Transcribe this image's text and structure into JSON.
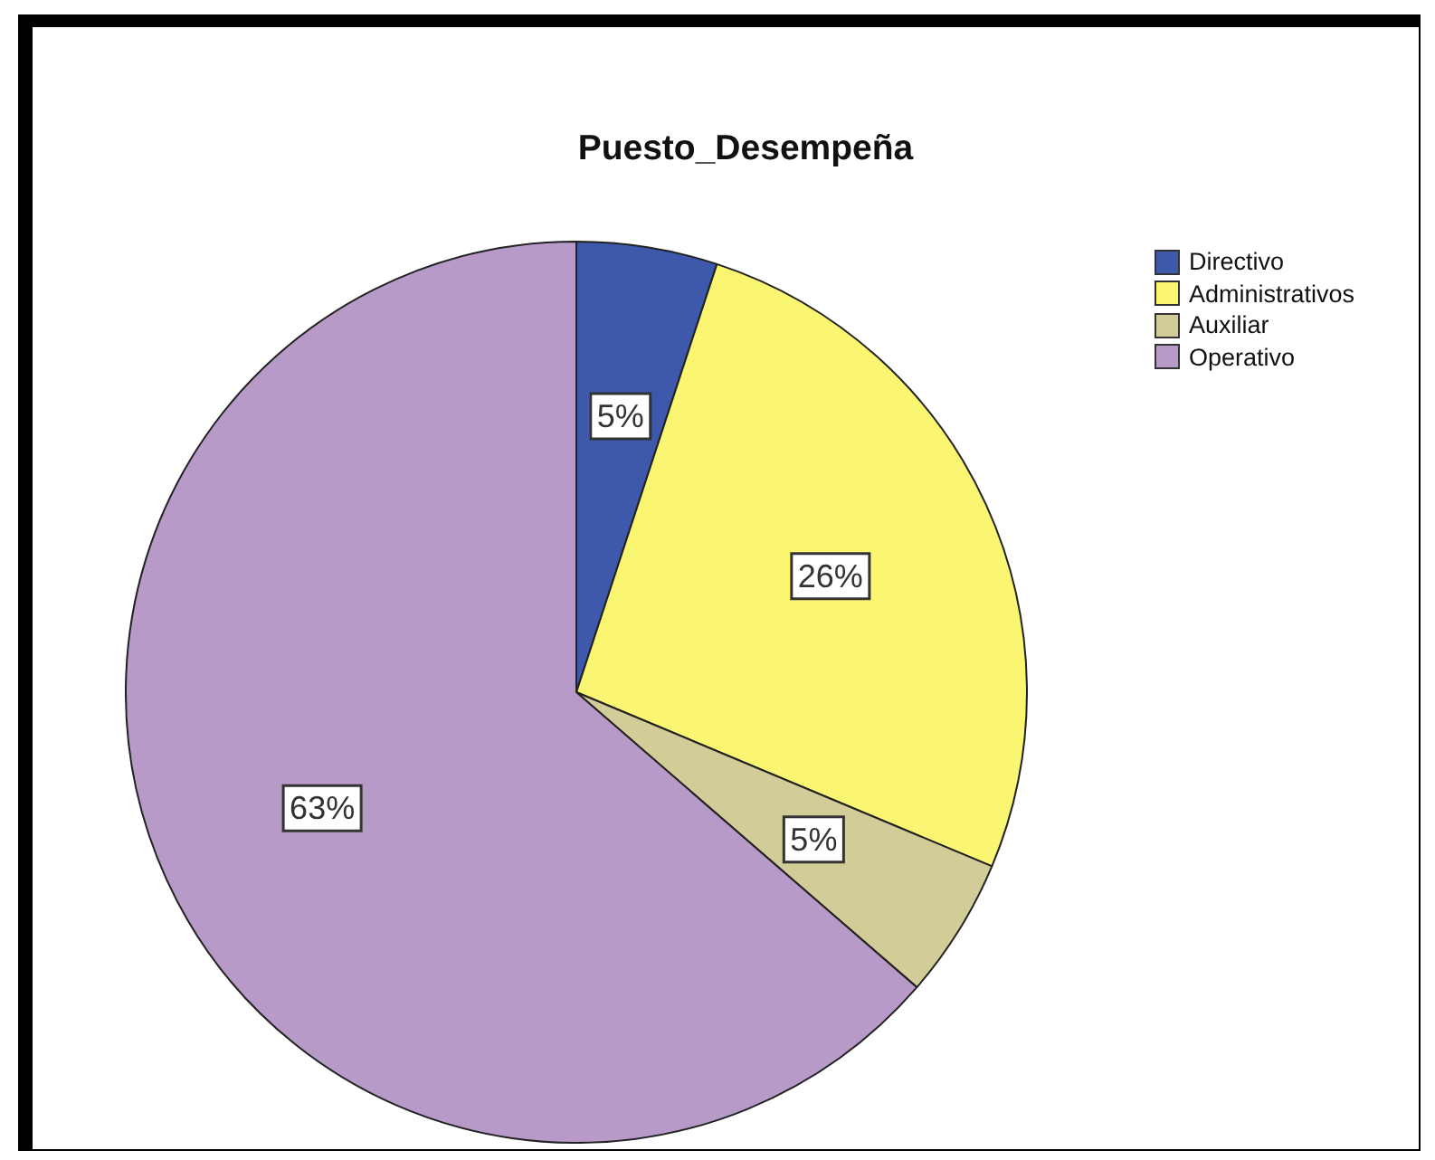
{
  "chart_data": {
    "type": "pie",
    "title": "Puesto_Desempeña",
    "categories": [
      "Directivo",
      "Administrativos",
      "Auxiliar",
      "Operativo"
    ],
    "values": [
      5,
      26,
      5,
      63
    ],
    "colors": [
      "#3e58ac",
      "#faf672",
      "#d2cd98",
      "#b79ac8"
    ],
    "value_labels": [
      "5%",
      "26%",
      "5%",
      "63%"
    ],
    "legend": "top right"
  }
}
